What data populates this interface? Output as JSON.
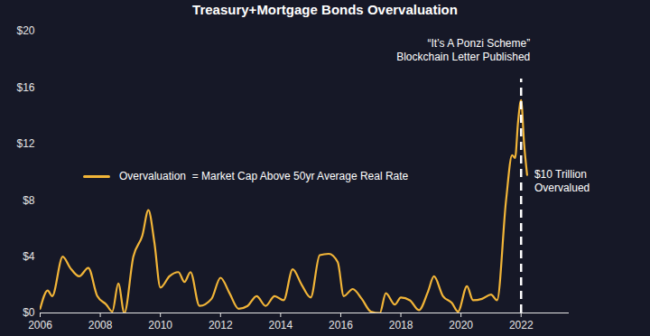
{
  "chart_data": {
    "type": "line",
    "title": "Treasury+Mortgage Bonds Overvaluation",
    "x": [
      2006.0,
      2006.25,
      2006.4,
      2006.75,
      2007.0,
      2007.3,
      2007.6,
      2007.9,
      2008.2,
      2008.4,
      2008.6,
      2008.8,
      2009.1,
      2009.4,
      2009.6,
      2009.8,
      2010.0,
      2010.3,
      2010.6,
      2010.8,
      2011.0,
      2011.3,
      2011.7,
      2012.0,
      2012.3,
      2012.6,
      2012.9,
      2013.2,
      2013.5,
      2013.8,
      2014.1,
      2014.4,
      2014.7,
      2015.0,
      2015.3,
      2015.6,
      2015.9,
      2016.1,
      2016.4,
      2016.7,
      2017.0,
      2017.3,
      2017.5,
      2017.8,
      2018.0,
      2018.3,
      2018.6,
      2018.9,
      2019.1,
      2019.4,
      2019.7,
      2019.9,
      2020.2,
      2020.4,
      2020.7,
      2021.0,
      2021.2,
      2021.5,
      2021.7,
      2021.8,
      2021.9,
      2022.0,
      2022.1,
      2022.2
    ],
    "series": [
      {
        "name": "Overvaluation  = Market Cap Above 50yr Average Real Rate",
        "color": "#f2b538",
        "values": [
          0.3,
          1.6,
          1.2,
          4.0,
          3.2,
          2.6,
          3.2,
          1.2,
          0.6,
          0.1,
          2.1,
          0.0,
          4.0,
          5.5,
          7.3,
          5.0,
          1.8,
          2.6,
          2.9,
          2.2,
          2.9,
          0.5,
          1.0,
          2.5,
          1.4,
          0.3,
          0.5,
          1.2,
          0.5,
          1.2,
          0.9,
          3.1,
          2.0,
          1.1,
          4.1,
          4.2,
          3.6,
          1.2,
          1.7,
          1.0,
          0.1,
          0.0,
          1.4,
          0.6,
          1.1,
          0.9,
          0.2,
          1.5,
          2.6,
          1.2,
          0.7,
          0.1,
          1.9,
          0.9,
          1.0,
          1.3,
          0.9,
          8.0,
          11.2,
          11.0,
          13.6,
          15.1,
          12.0,
          9.8
        ]
      }
    ],
    "xlim": [
      2006,
      2023.6
    ],
    "xticks": [
      2006,
      2008,
      2010,
      2012,
      2014,
      2016,
      2018,
      2020,
      2022
    ],
    "ylim": [
      0,
      20
    ],
    "yticks": [
      {
        "value": 0,
        "label": "$0"
      },
      {
        "value": 4,
        "label": "$4"
      },
      {
        "value": 8,
        "label": "$8"
      },
      {
        "value": 12,
        "label": "$12"
      },
      {
        "value": 16,
        "label": "$16"
      },
      {
        "value": 20,
        "label": "$20"
      }
    ],
    "grid": false,
    "legend": "left",
    "annotations": [
      {
        "x": 2022,
        "text": [
          "“It’s A Ponzi Scheme”",
          "Blockchain Letter Published"
        ],
        "line_style": "dashed"
      },
      {
        "text": [
          "$10 Trillion",
          "Overvalued"
        ]
      }
    ]
  }
}
